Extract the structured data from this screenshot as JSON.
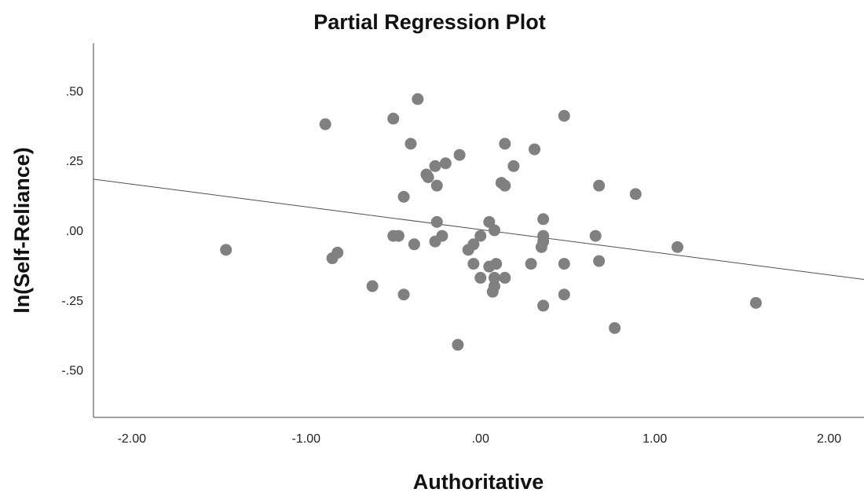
{
  "chart_data": {
    "type": "scatter",
    "title": "Partial Regression Plot",
    "xlabel": "Authoritative",
    "ylabel": "ln(Self-Reliance)",
    "xlim": [
      -2.22,
      2.2
    ],
    "ylim": [
      -0.67,
      0.67
    ],
    "x_ticks": [
      {
        "value": -2.0,
        "label": "-2.00"
      },
      {
        "value": -1.0,
        "label": "-1.00"
      },
      {
        "value": 0.0,
        "label": ".00"
      },
      {
        "value": 1.0,
        "label": "1.00"
      },
      {
        "value": 2.0,
        "label": "2.00"
      }
    ],
    "y_ticks": [
      {
        "value": 0.5,
        "label": ".50"
      },
      {
        "value": 0.25,
        "label": ".25"
      },
      {
        "value": 0.0,
        "label": ".00"
      },
      {
        "value": -0.25,
        "label": "-.25"
      },
      {
        "value": -0.5,
        "label": "-.50"
      }
    ],
    "fit_line": {
      "x": [
        -2.22,
        2.2
      ],
      "y": [
        0.183,
        -0.176
      ]
    },
    "points": [
      {
        "x": -0.36,
        "y": 0.47
      },
      {
        "x": -0.5,
        "y": 0.4
      },
      {
        "x": -0.89,
        "y": 0.38
      },
      {
        "x": 0.48,
        "y": 0.41
      },
      {
        "x": -0.4,
        "y": 0.31
      },
      {
        "x": 0.14,
        "y": 0.31
      },
      {
        "x": 0.31,
        "y": 0.29
      },
      {
        "x": -0.12,
        "y": 0.27
      },
      {
        "x": -0.26,
        "y": 0.23
      },
      {
        "x": -0.2,
        "y": 0.24
      },
      {
        "x": 0.19,
        "y": 0.23
      },
      {
        "x": -0.31,
        "y": 0.2
      },
      {
        "x": -0.3,
        "y": 0.19
      },
      {
        "x": -0.25,
        "y": 0.16
      },
      {
        "x": 0.12,
        "y": 0.17
      },
      {
        "x": 0.14,
        "y": 0.16
      },
      {
        "x": 0.68,
        "y": 0.16
      },
      {
        "x": 0.89,
        "y": 0.13
      },
      {
        "x": -0.44,
        "y": 0.12
      },
      {
        "x": 0.36,
        "y": 0.04
      },
      {
        "x": -0.25,
        "y": 0.03
      },
      {
        "x": 0.05,
        "y": 0.03
      },
      {
        "x": 0.08,
        "y": 0.0
      },
      {
        "x": 0.0,
        "y": -0.02
      },
      {
        "x": -0.22,
        "y": -0.02
      },
      {
        "x": -0.5,
        "y": -0.02
      },
      {
        "x": -0.47,
        "y": -0.02
      },
      {
        "x": 0.36,
        "y": -0.02
      },
      {
        "x": 0.66,
        "y": -0.02
      },
      {
        "x": 0.36,
        "y": -0.04
      },
      {
        "x": -0.26,
        "y": -0.04
      },
      {
        "x": -0.38,
        "y": -0.05
      },
      {
        "x": -0.04,
        "y": -0.05
      },
      {
        "x": -1.46,
        "y": -0.07
      },
      {
        "x": -0.07,
        "y": -0.07
      },
      {
        "x": 0.35,
        "y": -0.06
      },
      {
        "x": 1.13,
        "y": -0.06
      },
      {
        "x": -0.82,
        "y": -0.08
      },
      {
        "x": -0.85,
        "y": -0.1
      },
      {
        "x": -0.04,
        "y": -0.12
      },
      {
        "x": 0.05,
        "y": -0.13
      },
      {
        "x": 0.09,
        "y": -0.12
      },
      {
        "x": 0.29,
        "y": -0.12
      },
      {
        "x": 0.48,
        "y": -0.12
      },
      {
        "x": 0.68,
        "y": -0.11
      },
      {
        "x": 0.0,
        "y": -0.17
      },
      {
        "x": 0.08,
        "y": -0.17
      },
      {
        "x": 0.14,
        "y": -0.17
      },
      {
        "x": 0.08,
        "y": -0.2
      },
      {
        "x": -0.62,
        "y": -0.2
      },
      {
        "x": 0.07,
        "y": -0.22
      },
      {
        "x": -0.44,
        "y": -0.23
      },
      {
        "x": 0.48,
        "y": -0.23
      },
      {
        "x": 0.36,
        "y": -0.27
      },
      {
        "x": 1.58,
        "y": -0.26
      },
      {
        "x": 0.77,
        "y": -0.35
      },
      {
        "x": -0.13,
        "y": -0.41
      }
    ],
    "point_color": "#808080",
    "line_color": "#505050",
    "axis_color": "#808080",
    "grid": false,
    "legend": "none"
  }
}
